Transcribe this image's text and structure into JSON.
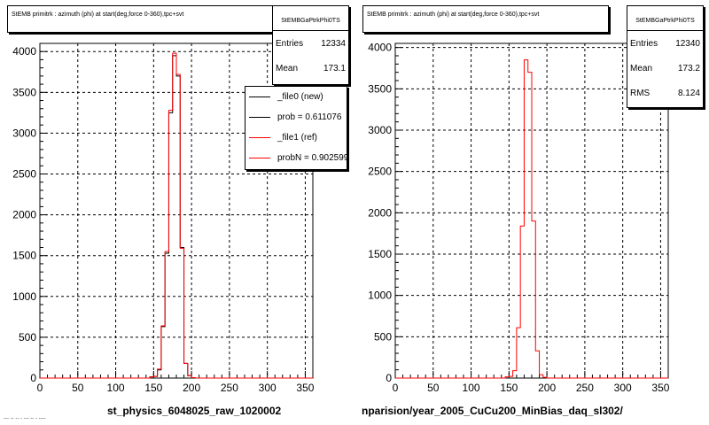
{
  "colors": {
    "new_series": "#000000",
    "ref_series": "#ff0000",
    "grid": "#000000"
  },
  "left": {
    "title": "StEMB primitrk : azimuth (phi) at start(deg,force 0-360),tpc+svt",
    "stats": {
      "header": "StEMBGaPtrkPhi0TS",
      "rows": [
        {
          "label": "Entries",
          "value": "12334"
        },
        {
          "label": "Mean",
          "value": "173.1"
        }
      ]
    },
    "legend": [
      {
        "label": "_file0 (new)",
        "color": "black"
      },
      {
        "label": "prob = 0.611076",
        "color": "black"
      },
      {
        "label": "_file1 (ref)",
        "color": "red"
      },
      {
        "label": "probN = 0.902599",
        "color": "red"
      }
    ],
    "caption": "st_physics_6048025_raw_1020002",
    "footer": "--- -- -- - --- -- - ----"
  },
  "right": {
    "title": "StEMB primitrk : azimuth (phi) at start(deg,force 0-360),tpc+svt",
    "stats": {
      "header": "StEMBGaPtrkPhi0TS",
      "rows": [
        {
          "label": "Entries",
          "value": "12340"
        },
        {
          "label": "Mean",
          "value": "173.2"
        },
        {
          "label": "RMS",
          "value": "8.124"
        }
      ]
    },
    "caption": "nparision/year_2005_CuCu200_MinBias_daq_sl302/"
  },
  "chart_data": [
    {
      "type": "histogram",
      "title": "StEMB primitrk : azimuth (phi) at start(deg,force 0-360),tpc+svt",
      "xlabel": "st_physics_6048025_raw_1020002",
      "ylabel": "",
      "xlim": [
        0,
        360
      ],
      "ylim": [
        0,
        4100
      ],
      "x_ticks": [
        0,
        50,
        100,
        150,
        200,
        250,
        300,
        350
      ],
      "y_ticks": [
        0,
        500,
        1000,
        1500,
        2000,
        2500,
        3000,
        3500,
        4000
      ],
      "grid": true,
      "bin_edges": [
        140,
        145,
        150,
        155,
        160,
        165,
        170,
        175,
        180,
        185,
        190,
        195,
        200,
        205,
        210,
        215
      ],
      "series": [
        {
          "name": "_file0 (new)",
          "color": "black",
          "values": [
            0,
            15,
            20,
            100,
            630,
            1530,
            3250,
            3950,
            3700,
            1600,
            180,
            30,
            5,
            0,
            0
          ]
        },
        {
          "name": "_file1 (ref)",
          "color": "red",
          "values": [
            0,
            15,
            20,
            110,
            640,
            1550,
            3280,
            3980,
            3720,
            1590,
            180,
            30,
            5,
            0,
            0
          ]
        }
      ]
    },
    {
      "type": "histogram",
      "title": "StEMB primitrk : azimuth (phi) at start(deg,force 0-360),tpc+svt",
      "xlabel": "nparision/year_2005_CuCu200_MinBias_daq_sl302/",
      "ylabel": "",
      "xlim": [
        0,
        360
      ],
      "ylim": [
        0,
        4050
      ],
      "x_ticks": [
        0,
        50,
        100,
        150,
        200,
        250,
        300,
        350
      ],
      "y_ticks": [
        0,
        500,
        1000,
        1500,
        2000,
        2500,
        3000,
        3500,
        4000
      ],
      "grid": true,
      "bin_edges": [
        140,
        145,
        150,
        155,
        160,
        165,
        170,
        175,
        180,
        185,
        190,
        195,
        200,
        205,
        210,
        215
      ],
      "series": [
        {
          "name": "",
          "color": "red",
          "values": [
            0,
            15,
            20,
            90,
            610,
            1840,
            3850,
            3700,
            1900,
            330,
            40,
            10,
            0,
            0,
            0
          ]
        }
      ]
    }
  ]
}
